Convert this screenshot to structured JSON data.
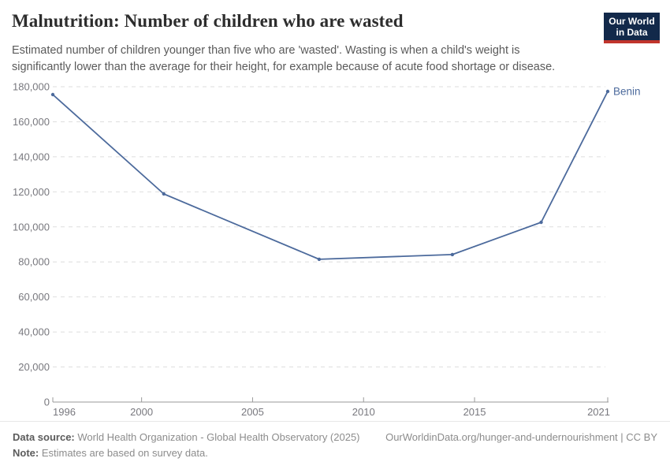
{
  "header": {
    "title": "Malnutrition: Number of children who are wasted",
    "subtitle": "Estimated number of children younger than five who are 'wasted'. Wasting is when a child's weight is significantly lower than the average for their height, for example because of acute food shortage or disease."
  },
  "logo": {
    "line1": "Our World",
    "line2": "in Data",
    "bg_color": "#12294A",
    "accent_color": "#C0342C"
  },
  "chart_data": {
    "type": "line",
    "title": "Malnutrition: Number of children who are wasted",
    "x": [
      1996,
      2001,
      2008,
      2014,
      2018,
      2021
    ],
    "series": [
      {
        "name": "Benin",
        "values": [
          175500,
          118800,
          81500,
          84200,
          102600,
          177300
        ],
        "color": "#4C6A9C"
      }
    ],
    "xlabel": "",
    "ylabel": "",
    "xlim": [
      1996,
      2021
    ],
    "ylim": [
      0,
      180000
    ],
    "xticks": [
      1996,
      2000,
      2005,
      2010,
      2015,
      2021
    ],
    "yticks": [
      0,
      20000,
      40000,
      60000,
      80000,
      100000,
      120000,
      140000,
      160000,
      180000
    ],
    "grid": true,
    "grid_style": "dashed",
    "legend_position": "end-of-line-label",
    "end_label": "Benin",
    "colors": {
      "line": "#4C6A9C",
      "axis_line": "#999999",
      "gridline": "#dedede",
      "tick_label": "#78787e"
    }
  },
  "footer": {
    "source_label": "Data source:",
    "source_text": " World Health Organization - Global Health Observatory (2025)",
    "link_text": "OurWorldinData.org/hunger-and-undernourishment | CC BY",
    "note_label": "Note:",
    "note_text": " Estimates are based on survey data."
  }
}
